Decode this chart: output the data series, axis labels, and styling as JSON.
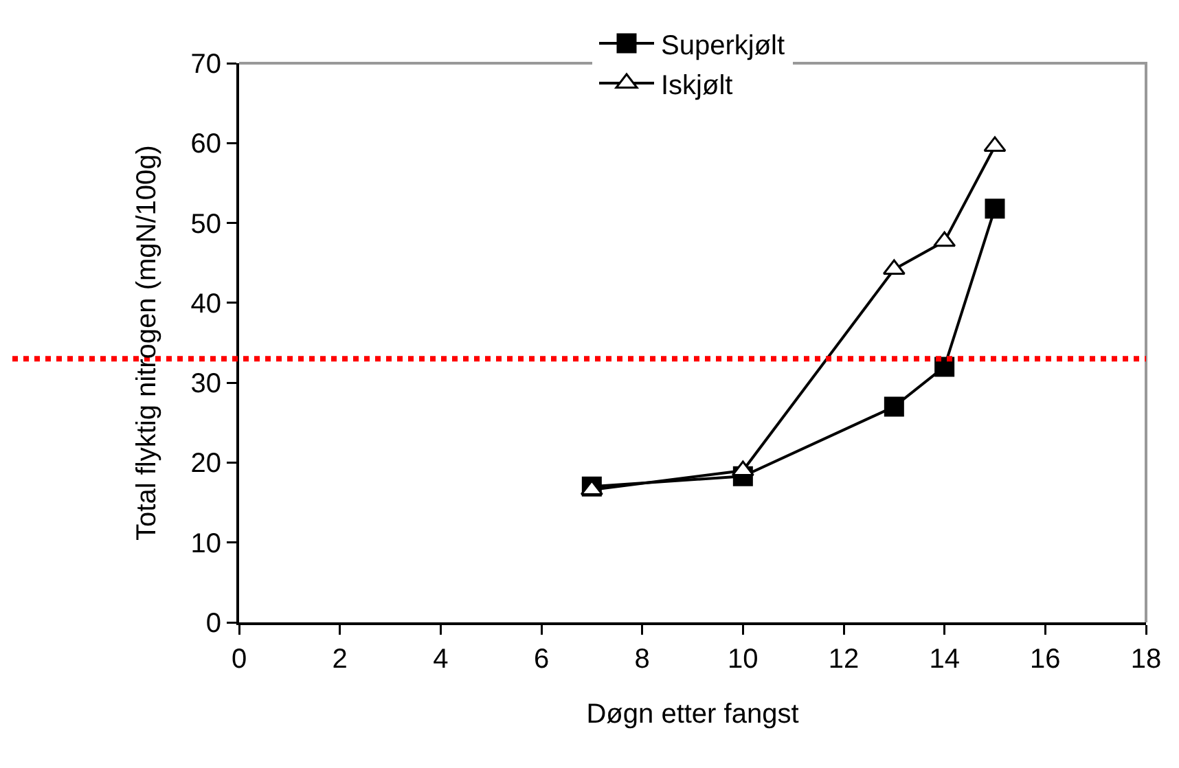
{
  "chart_data": {
    "type": "line",
    "xlabel": "Døgn etter fangst",
    "ylabel": "Total flyktig nitrogen (mgN/100g)",
    "x": [
      7,
      10,
      13,
      14,
      15
    ],
    "series": [
      {
        "name": "Superkjølt",
        "color": "#000000",
        "marker": "square",
        "values": [
          17,
          18.3,
          27,
          32,
          51.8
        ]
      },
      {
        "name": "Iskjølt",
        "color": "#000000",
        "marker": "triangle",
        "values": [
          16.6,
          19,
          44.2,
          47.7,
          59.6
        ]
      }
    ],
    "xlim": [
      0,
      18
    ],
    "xticks": [
      0,
      2,
      4,
      6,
      8,
      10,
      12,
      14,
      16,
      18
    ],
    "ylim": [
      0,
      70
    ],
    "yticks": [
      0,
      10,
      20,
      30,
      40,
      50,
      60,
      70
    ],
    "ref_lines": [
      {
        "axis": "y",
        "value": 33,
        "color": "#ff0000",
        "line_style": "dotted"
      }
    ],
    "grid": false,
    "legend": "top",
    "line_style": "solid"
  }
}
